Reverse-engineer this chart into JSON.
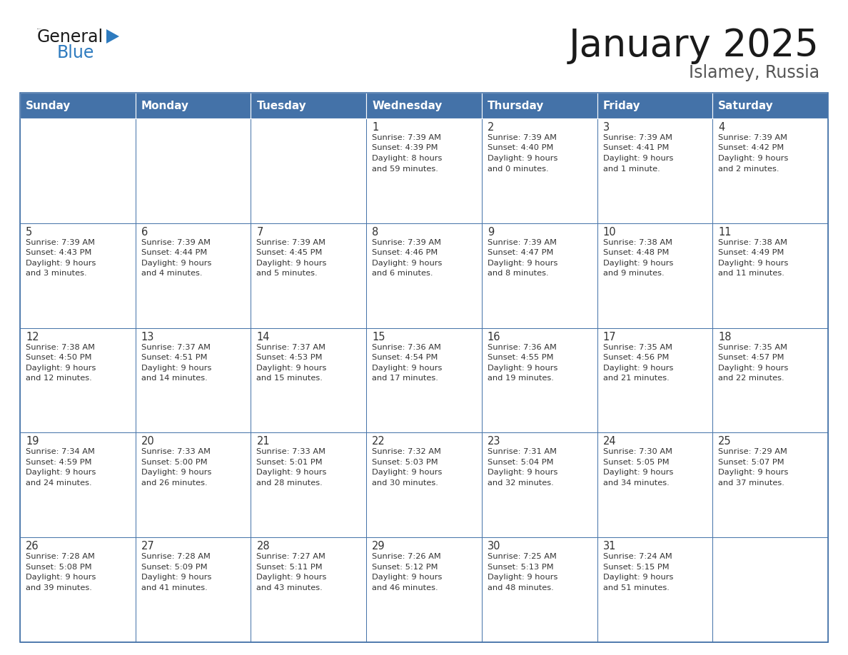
{
  "title": "January 2025",
  "subtitle": "Islamey, Russia",
  "days_of_week": [
    "Sunday",
    "Monday",
    "Tuesday",
    "Wednesday",
    "Thursday",
    "Friday",
    "Saturday"
  ],
  "header_bg": "#4472a8",
  "header_text_color": "#ffffff",
  "cell_bg": "#ffffff",
  "border_color": "#4472a8",
  "text_color": "#333333",
  "title_color": "#1a1a1a",
  "subtitle_color": "#555555",
  "logo_black": "#1a1a1a",
  "logo_blue": "#2e7bbf",
  "calendar_data": [
    [
      null,
      null,
      null,
      {
        "day": 1,
        "sunrise": "7:39 AM",
        "sunset": "4:39 PM",
        "daylight": "8 hours and 59 minutes."
      },
      {
        "day": 2,
        "sunrise": "7:39 AM",
        "sunset": "4:40 PM",
        "daylight": "9 hours and 0 minutes."
      },
      {
        "day": 3,
        "sunrise": "7:39 AM",
        "sunset": "4:41 PM",
        "daylight": "9 hours and 1 minute."
      },
      {
        "day": 4,
        "sunrise": "7:39 AM",
        "sunset": "4:42 PM",
        "daylight": "9 hours and 2 minutes."
      }
    ],
    [
      {
        "day": 5,
        "sunrise": "7:39 AM",
        "sunset": "4:43 PM",
        "daylight": "9 hours and 3 minutes."
      },
      {
        "day": 6,
        "sunrise": "7:39 AM",
        "sunset": "4:44 PM",
        "daylight": "9 hours and 4 minutes."
      },
      {
        "day": 7,
        "sunrise": "7:39 AM",
        "sunset": "4:45 PM",
        "daylight": "9 hours and 5 minutes."
      },
      {
        "day": 8,
        "sunrise": "7:39 AM",
        "sunset": "4:46 PM",
        "daylight": "9 hours and 6 minutes."
      },
      {
        "day": 9,
        "sunrise": "7:39 AM",
        "sunset": "4:47 PM",
        "daylight": "9 hours and 8 minutes."
      },
      {
        "day": 10,
        "sunrise": "7:38 AM",
        "sunset": "4:48 PM",
        "daylight": "9 hours and 9 minutes."
      },
      {
        "day": 11,
        "sunrise": "7:38 AM",
        "sunset": "4:49 PM",
        "daylight": "9 hours and 11 minutes."
      }
    ],
    [
      {
        "day": 12,
        "sunrise": "7:38 AM",
        "sunset": "4:50 PM",
        "daylight": "9 hours and 12 minutes."
      },
      {
        "day": 13,
        "sunrise": "7:37 AM",
        "sunset": "4:51 PM",
        "daylight": "9 hours and 14 minutes."
      },
      {
        "day": 14,
        "sunrise": "7:37 AM",
        "sunset": "4:53 PM",
        "daylight": "9 hours and 15 minutes."
      },
      {
        "day": 15,
        "sunrise": "7:36 AM",
        "sunset": "4:54 PM",
        "daylight": "9 hours and 17 minutes."
      },
      {
        "day": 16,
        "sunrise": "7:36 AM",
        "sunset": "4:55 PM",
        "daylight": "9 hours and 19 minutes."
      },
      {
        "day": 17,
        "sunrise": "7:35 AM",
        "sunset": "4:56 PM",
        "daylight": "9 hours and 21 minutes."
      },
      {
        "day": 18,
        "sunrise": "7:35 AM",
        "sunset": "4:57 PM",
        "daylight": "9 hours and 22 minutes."
      }
    ],
    [
      {
        "day": 19,
        "sunrise": "7:34 AM",
        "sunset": "4:59 PM",
        "daylight": "9 hours and 24 minutes."
      },
      {
        "day": 20,
        "sunrise": "7:33 AM",
        "sunset": "5:00 PM",
        "daylight": "9 hours and 26 minutes."
      },
      {
        "day": 21,
        "sunrise": "7:33 AM",
        "sunset": "5:01 PM",
        "daylight": "9 hours and 28 minutes."
      },
      {
        "day": 22,
        "sunrise": "7:32 AM",
        "sunset": "5:03 PM",
        "daylight": "9 hours and 30 minutes."
      },
      {
        "day": 23,
        "sunrise": "7:31 AM",
        "sunset": "5:04 PM",
        "daylight": "9 hours and 32 minutes."
      },
      {
        "day": 24,
        "sunrise": "7:30 AM",
        "sunset": "5:05 PM",
        "daylight": "9 hours and 34 minutes."
      },
      {
        "day": 25,
        "sunrise": "7:29 AM",
        "sunset": "5:07 PM",
        "daylight": "9 hours and 37 minutes."
      }
    ],
    [
      {
        "day": 26,
        "sunrise": "7:28 AM",
        "sunset": "5:08 PM",
        "daylight": "9 hours and 39 minutes."
      },
      {
        "day": 27,
        "sunrise": "7:28 AM",
        "sunset": "5:09 PM",
        "daylight": "9 hours and 41 minutes."
      },
      {
        "day": 28,
        "sunrise": "7:27 AM",
        "sunset": "5:11 PM",
        "daylight": "9 hours and 43 minutes."
      },
      {
        "day": 29,
        "sunrise": "7:26 AM",
        "sunset": "5:12 PM",
        "daylight": "9 hours and 46 minutes."
      },
      {
        "day": 30,
        "sunrise": "7:25 AM",
        "sunset": "5:13 PM",
        "daylight": "9 hours and 48 minutes."
      },
      {
        "day": 31,
        "sunrise": "7:24 AM",
        "sunset": "5:15 PM",
        "daylight": "9 hours and 51 minutes."
      },
      null
    ]
  ]
}
